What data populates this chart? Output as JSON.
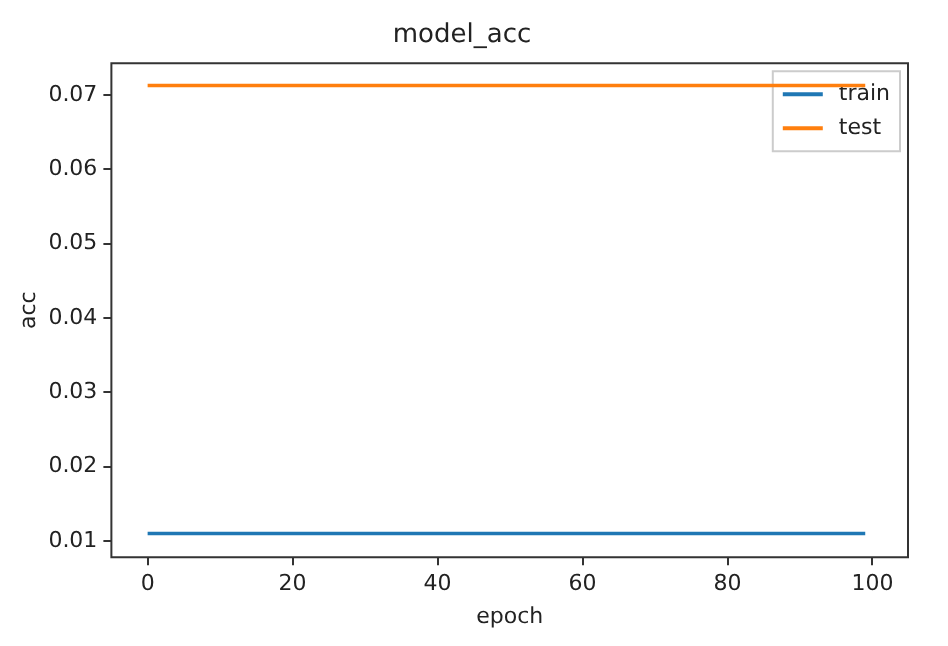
{
  "chart_data": {
    "type": "line",
    "title": "model_acc",
    "xlabel": "epoch",
    "ylabel": "acc",
    "x": [
      0,
      99
    ],
    "series": [
      {
        "name": "train",
        "color": "#1f77b4",
        "values": [
          0.011,
          0.011
        ]
      },
      {
        "name": "test",
        "color": "#ff7f0e",
        "values": [
          0.0713,
          0.0713
        ]
      }
    ],
    "xlim": [
      -5,
      104.9
    ],
    "xticks": [
      0,
      20,
      40,
      60,
      80,
      100
    ],
    "ylim": [
      0.0078,
      0.0743
    ],
    "yticks": [
      {
        "value": 0.01,
        "label": "0.01"
      },
      {
        "value": 0.02,
        "label": "0.02"
      },
      {
        "value": 0.03,
        "label": "0.03"
      },
      {
        "value": 0.04,
        "label": "0.04"
      },
      {
        "value": 0.05,
        "label": "0.05"
      },
      {
        "value": 0.06,
        "label": "0.06"
      },
      {
        "value": 0.07,
        "label": "0.07"
      }
    ],
    "grid": false,
    "legend": "top right",
    "marker": "none",
    "line_style": "solid"
  }
}
